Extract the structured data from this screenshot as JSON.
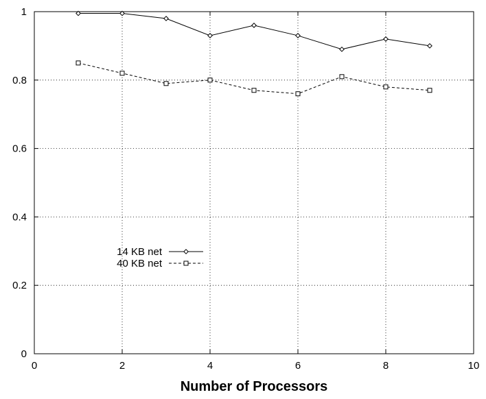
{
  "chart_data": {
    "type": "line",
    "xlabel": "Number of Processors",
    "ylabel": "",
    "xlim": [
      0,
      10
    ],
    "ylim": [
      0,
      1
    ],
    "x_ticks": [
      0,
      2,
      4,
      6,
      8,
      10
    ],
    "y_ticks": [
      0,
      0.2,
      0.4,
      0.6,
      0.8,
      1
    ],
    "grid": true,
    "legend_position": "left-middle",
    "series": [
      {
        "name": "14 KB net",
        "marker": "diamond",
        "line_style": "solid",
        "x": [
          1,
          2,
          3,
          4,
          5,
          6,
          7,
          8,
          9
        ],
        "y": [
          0.995,
          0.995,
          0.98,
          0.93,
          0.96,
          0.93,
          0.89,
          0.92,
          0.9
        ]
      },
      {
        "name": "40 KB net",
        "marker": "square",
        "line_style": "dashed",
        "x": [
          1,
          2,
          3,
          4,
          5,
          6,
          7,
          8,
          9
        ],
        "y": [
          0.85,
          0.82,
          0.79,
          0.8,
          0.77,
          0.76,
          0.81,
          0.78,
          0.77
        ]
      }
    ]
  }
}
